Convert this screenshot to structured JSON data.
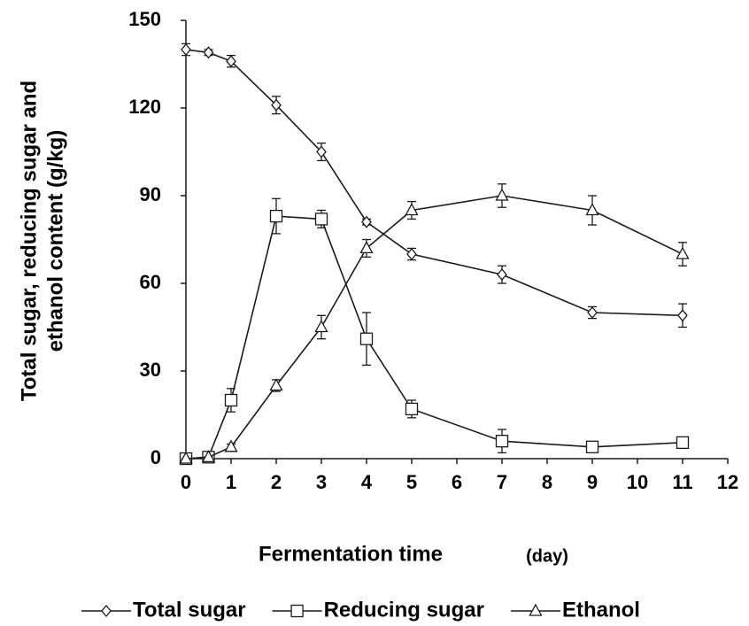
{
  "chart_data": {
    "type": "line",
    "x_label": "Fermentation time",
    "x_label_unit": "(day)",
    "y_label": [
      "Total sugar, reducing sugar and",
      "ethanol content (g/kg)"
    ],
    "x": [
      0,
      0.5,
      1,
      2,
      3,
      4,
      5,
      7,
      9,
      11
    ],
    "series": [
      {
        "name": "Total sugar",
        "marker": "diamond",
        "color": "#1a1a1a",
        "values": [
          140,
          139,
          136,
          121,
          105,
          81,
          70,
          63,
          50,
          49
        ],
        "errors": [
          2,
          1,
          2,
          3,
          3,
          1,
          2,
          3,
          2,
          4
        ]
      },
      {
        "name": "Reducing sugar",
        "marker": "square",
        "color": "#1a1a1a",
        "values": [
          0,
          0.5,
          20,
          83,
          82,
          41,
          17,
          6,
          4,
          5.5
        ],
        "errors": [
          0,
          0,
          4,
          6,
          3,
          9,
          3,
          4,
          0,
          0
        ]
      },
      {
        "name": "Ethanol",
        "marker": "triangle",
        "color": "#1a1a1a",
        "values": [
          0,
          0.5,
          4,
          25,
          45,
          72,
          85,
          90,
          85,
          70
        ],
        "errors": [
          0,
          0,
          1,
          2,
          4,
          3,
          3,
          4,
          5,
          4
        ]
      }
    ],
    "xlim": [
      0,
      12
    ],
    "xticks": [
      0,
      1,
      2,
      3,
      4,
      5,
      6,
      7,
      8,
      9,
      10,
      11,
      12
    ],
    "ylim": [
      0,
      150
    ],
    "yticks": [
      0,
      30,
      60,
      90,
      120,
      150
    ],
    "grid": false,
    "legend": "bottom"
  }
}
